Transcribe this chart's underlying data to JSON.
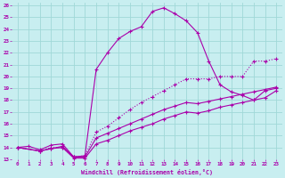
{
  "background_color": "#c8eef0",
  "line_color": "#aa00aa",
  "grid_color": "#a0d8d8",
  "xlabel": "Windchill (Refroidissement éolien,°C)",
  "xlim": [
    -0.5,
    23.5
  ],
  "ylim": [
    13,
    26.2
  ],
  "xtick_vals": [
    0,
    1,
    2,
    3,
    4,
    5,
    6,
    7,
    8,
    9,
    10,
    11,
    12,
    13,
    14,
    15,
    16,
    17,
    18,
    19,
    20,
    21,
    22,
    23
  ],
  "ytick_vals": [
    13,
    14,
    15,
    16,
    17,
    18,
    19,
    20,
    21,
    22,
    23,
    24,
    25,
    26
  ],
  "lines": [
    {
      "x": [
        0,
        1,
        2,
        3,
        4,
        5,
        6,
        7,
        8,
        9,
        10,
        11,
        12,
        13,
        14,
        15,
        16,
        17,
        18,
        19,
        20,
        21,
        22,
        23
      ],
      "y": [
        14,
        14.1,
        13.8,
        14.2,
        14.3,
        13.2,
        13.3,
        20.6,
        22.0,
        23.2,
        23.8,
        24.2,
        25.5,
        25.8,
        25.3,
        24.7,
        23.7,
        21.3,
        19.3,
        18.7,
        18.4,
        18.0,
        18.8,
        19.0
      ],
      "style": "solid"
    },
    {
      "x": [
        0,
        2,
        3,
        4,
        5,
        6,
        7,
        8,
        9,
        10,
        11,
        12,
        13,
        14,
        15,
        16,
        17,
        18,
        19,
        20,
        21,
        22,
        23
      ],
      "y": [
        14,
        13.7,
        14.0,
        14.0,
        13.2,
        13.3,
        15.3,
        15.8,
        16.5,
        17.2,
        17.8,
        18.3,
        18.8,
        19.3,
        19.8,
        19.8,
        19.8,
        20.0,
        20.0,
        20.0,
        21.3,
        21.3,
        21.5
      ],
      "style": "dotted"
    },
    {
      "x": [
        0,
        2,
        3,
        4,
        5,
        6,
        7,
        8,
        9,
        10,
        11,
        12,
        13,
        14,
        15,
        16,
        17,
        18,
        19,
        20,
        21,
        22,
        23
      ],
      "y": [
        14,
        13.7,
        13.9,
        14.1,
        13.2,
        13.2,
        14.8,
        15.2,
        15.6,
        16.0,
        16.4,
        16.8,
        17.2,
        17.5,
        17.8,
        17.7,
        17.9,
        18.1,
        18.3,
        18.5,
        18.7,
        18.9,
        19.1
      ],
      "style": "solid"
    },
    {
      "x": [
        0,
        2,
        3,
        4,
        5,
        6,
        7,
        8,
        9,
        10,
        11,
        12,
        13,
        14,
        15,
        16,
        17,
        18,
        19,
        20,
        21,
        22,
        23
      ],
      "y": [
        14,
        13.7,
        13.9,
        14.0,
        13.1,
        13.1,
        14.3,
        14.6,
        15.0,
        15.4,
        15.7,
        16.0,
        16.4,
        16.7,
        17.0,
        16.9,
        17.1,
        17.4,
        17.6,
        17.8,
        18.0,
        18.2,
        18.8
      ],
      "style": "solid"
    }
  ]
}
